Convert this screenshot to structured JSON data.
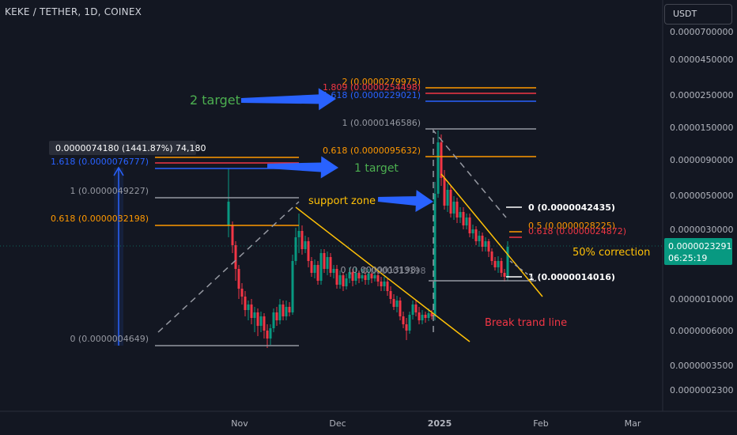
{
  "header": {
    "title": "KEKE / TETHER, 1D, COINEX",
    "currency": "USDT"
  },
  "chart_data": {
    "type": "candlestick",
    "price_axis_labels": [
      "0.0000700000",
      "0.0000450000",
      "0.0000250000",
      "0.0000150000",
      "0.0000090000",
      "0.0000050000",
      "0.0000030000",
      "0.0000010000",
      "0.0000006000",
      "0.0000003500",
      "0.0000002300"
    ],
    "time_axis_labels": [
      "Nov",
      "Dec",
      "2025",
      "Feb",
      "Mar"
    ],
    "last_price": {
      "value": "0.0000023291",
      "countdown": "06:25:19",
      "color": "#089981"
    },
    "overlap_label": "0.0000013198",
    "up_color": "#089981",
    "down_color": "#f23645",
    "fib_left": [
      {
        "label": "1.618 (0.0000076777)",
        "color": "#2962ff"
      },
      {
        "label": "1 (0.0000049227)",
        "color": "#9598a1"
      },
      {
        "label": "0.618 (0.0000032198)",
        "color": "#ff9800"
      },
      {
        "label": "0 (0.0000004649)",
        "color": "#9598a1"
      }
    ],
    "measure_label": "0.0000074180 (1441.87%) 74,180",
    "fib_middle": [
      {
        "label": "2 (0.0000279975)",
        "color": "#ff9800"
      },
      {
        "label": "1.809 (0.0000254498)",
        "color": "#f23645"
      },
      {
        "label": "1.618 (0.0000229021)",
        "color": "#2962ff"
      },
      {
        "label": "1 (0.0000146586)",
        "color": "#9598a1"
      },
      {
        "label": "0.618 (0.0000095632)",
        "color": "#ff9800"
      },
      {
        "label": "0 (0.0000013198)",
        "color": "#9598a1"
      }
    ],
    "fib_right": [
      {
        "label": "0 (0.0000042435)",
        "color": "#ffffff"
      },
      {
        "label": "0.5 (0.0000028225)",
        "color": "#ff9800"
      },
      {
        "label": "0.618 (0.0000024872)",
        "color": "#f23645"
      },
      {
        "label": "1 (0.0000014016)",
        "color": "#ffffff"
      }
    ],
    "annotations": [
      {
        "text": "2 target",
        "color": "#4caf50"
      },
      {
        "text": "1  target",
        "color": "#4caf50"
      },
      {
        "text": "support zone",
        "color": "#ffc107"
      },
      {
        "text": "50% correction",
        "color": "#ffc107"
      },
      {
        "text": "Break trand line",
        "color": "#f23645"
      }
    ]
  }
}
